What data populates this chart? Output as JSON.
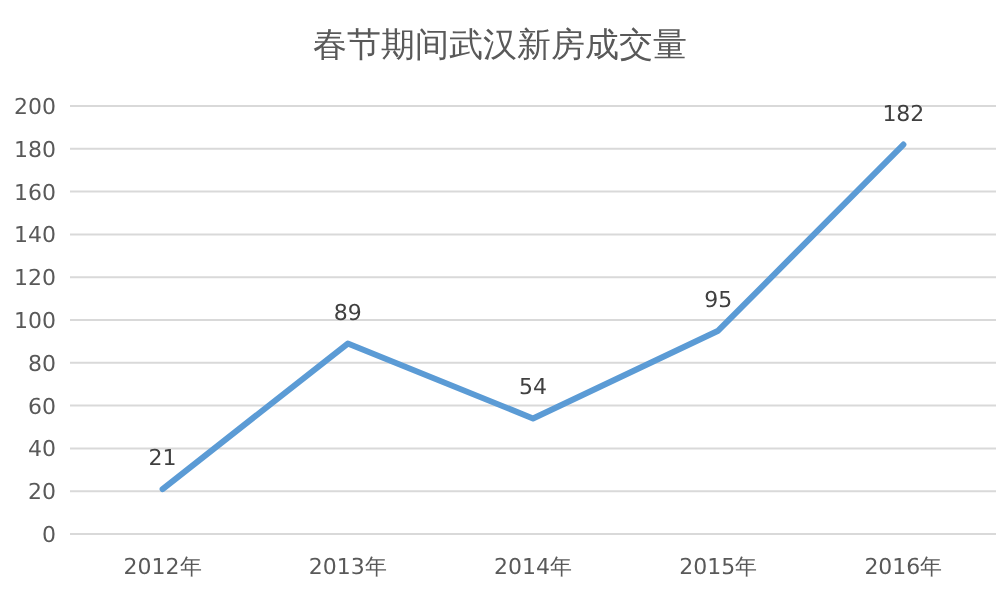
{
  "chart_data": {
    "type": "line",
    "title": "春节期间武汉新房成交量",
    "categories": [
      "2012年",
      "2013年",
      "2014年",
      "2015年",
      "2016年"
    ],
    "series": [
      {
        "color": "#5b9bd5",
        "values": [
          21,
          89,
          54,
          95,
          182
        ]
      }
    ],
    "ylim": [
      0,
      200
    ],
    "yticks": [
      0,
      20,
      40,
      60,
      80,
      100,
      120,
      140,
      160,
      180,
      200
    ],
    "grid": "y",
    "data_labels": true,
    "marker": "none",
    "line_style": "solid"
  }
}
